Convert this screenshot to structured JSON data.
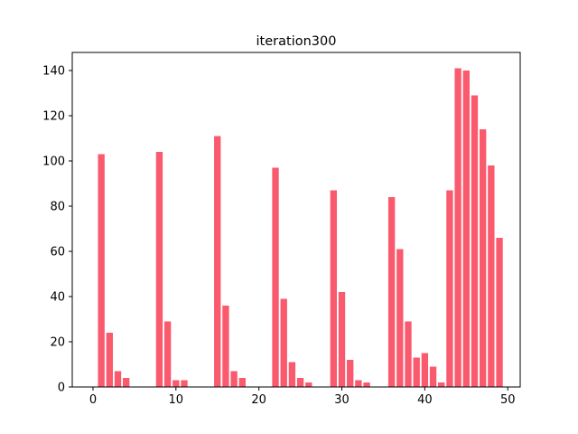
{
  "chart_data": {
    "type": "bar",
    "title": "iteration300",
    "xlabel": "",
    "ylabel": "",
    "color": "#fa5a6e",
    "xlim": [
      -2.5,
      51.5
    ],
    "ylim": [
      0,
      148
    ],
    "xticks": [
      0,
      10,
      20,
      30,
      40,
      50
    ],
    "yticks": [
      0,
      20,
      40,
      60,
      80,
      100,
      120,
      140
    ],
    "grid": false,
    "x": [
      0,
      1,
      2,
      3,
      4,
      5,
      6,
      7,
      8,
      9,
      10,
      11,
      12,
      13,
      14,
      15,
      16,
      17,
      18,
      19,
      20,
      21,
      22,
      23,
      24,
      25,
      26,
      27,
      28,
      29,
      30,
      31,
      32,
      33,
      34,
      35,
      36,
      37,
      38,
      39,
      40,
      41,
      42,
      43,
      44,
      45,
      46,
      47,
      48,
      49
    ],
    "values": [
      0,
      103,
      24,
      7,
      4,
      0,
      0,
      0,
      104,
      29,
      3,
      3,
      0,
      0,
      0,
      111,
      36,
      7,
      4,
      0,
      0,
      0,
      97,
      39,
      11,
      4,
      2,
      0,
      0,
      87,
      42,
      12,
      3,
      2,
      0,
      0,
      84,
      61,
      29,
      13,
      15,
      9,
      2,
      87,
      141,
      140,
      129,
      114,
      98,
      66
    ]
  }
}
